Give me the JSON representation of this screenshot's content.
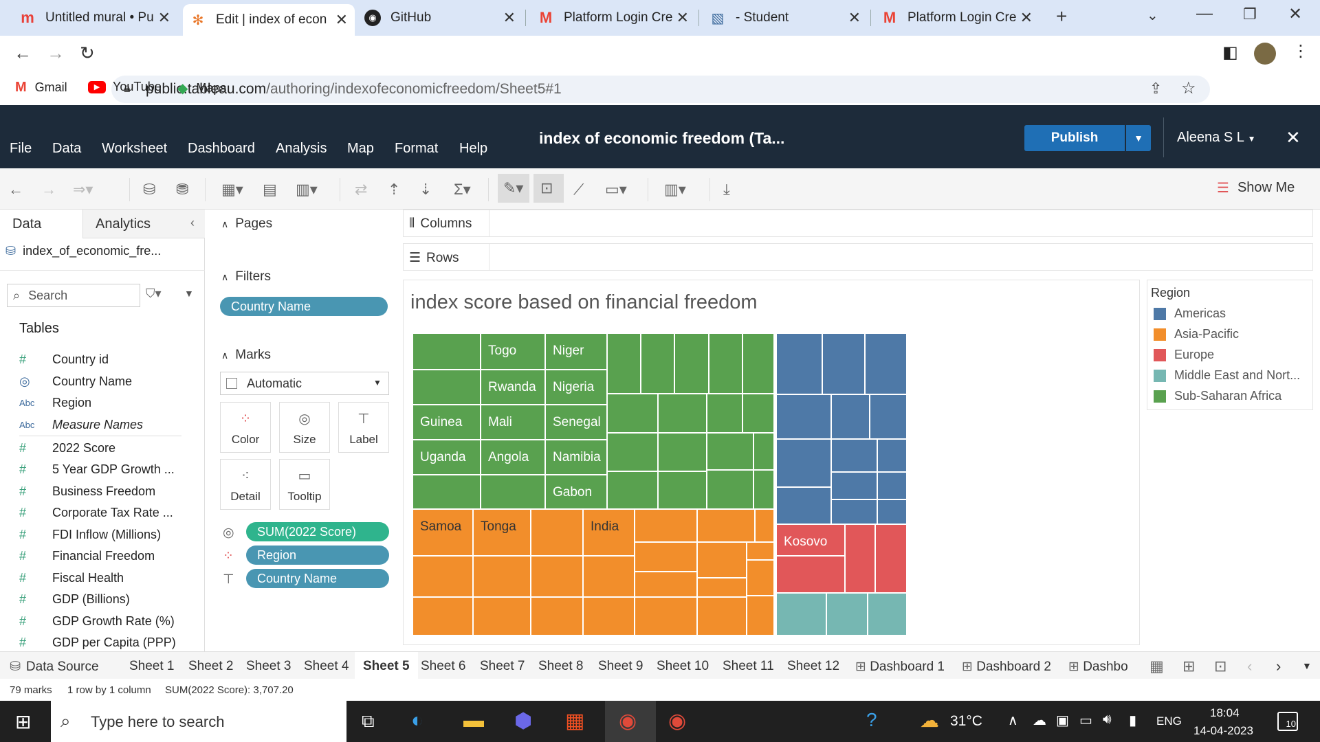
{
  "browser": {
    "tabs": [
      {
        "label": "Untitled mural • Pu",
        "icon": "mural-icon",
        "color": "#e8413a"
      },
      {
        "label": "Edit | index of econ",
        "icon": "tableau-icon",
        "color": "#e97627"
      },
      {
        "label": "GitHub",
        "icon": "github-icon",
        "color": "#222222"
      },
      {
        "label": "Platform Login Cre",
        "icon": "gmail-icon",
        "color": "#ea4335"
      },
      {
        "label": "- Student",
        "icon": "student-icon",
        "color": "#3c6a9c"
      },
      {
        "label": "Platform Login Cre",
        "icon": "gmail-icon",
        "color": "#ea4335"
      }
    ],
    "url_host": "public.tableau.com",
    "url_path": "/authoring/indexofeconomicfreedom/Sheet5#1",
    "bookmarks": [
      "Gmail",
      "YouTube",
      "Maps"
    ]
  },
  "app": {
    "menu": [
      "File",
      "Data",
      "Worksheet",
      "Dashboard",
      "Analysis",
      "Map",
      "Format",
      "Help"
    ],
    "title": "index of economic freedom (Ta...",
    "publish": "Publish",
    "user": "Aleena S L",
    "show_me": "Show Me"
  },
  "datapane": {
    "tab_data": "Data",
    "tab_analytics": "Analytics",
    "datasource": "index_of_economic_fre...",
    "search_placeholder": "Search",
    "tables_label": "Tables",
    "fields": [
      {
        "type": "#",
        "name": "Country id"
      },
      {
        "type": "globe",
        "name": "Country Name"
      },
      {
        "type": "Abc",
        "name": "Region"
      },
      {
        "type": "Abc",
        "name": "Measure Names"
      },
      {
        "type": "#",
        "name": "2022 Score"
      },
      {
        "type": "#",
        "name": "5 Year GDP Growth ..."
      },
      {
        "type": "#",
        "name": "Business Freedom"
      },
      {
        "type": "#",
        "name": "Corporate Tax Rate ..."
      },
      {
        "type": "#",
        "name": "FDI Inflow (Millions)"
      },
      {
        "type": "#",
        "name": "Financial Freedom"
      },
      {
        "type": "#",
        "name": "Fiscal Health"
      },
      {
        "type": "#",
        "name": "GDP (Billions)"
      },
      {
        "type": "#",
        "name": "GDP Growth Rate (%)"
      },
      {
        "type": "#",
        "name": "GDP per Capita (PPP)"
      }
    ]
  },
  "shelves": {
    "pages": "Pages",
    "filters": "Filters",
    "filter_pill": "Country Name",
    "marks": "Marks",
    "mark_type": "Automatic",
    "mark_buttons": [
      "Color",
      "Size",
      "Label",
      "Detail",
      "Tooltip"
    ],
    "mark_pills": [
      "SUM(2022 Score)",
      "Region",
      "Country Name"
    ],
    "columns": "Columns",
    "rows": "Rows"
  },
  "viz": {
    "title": "index score based on financial freedom",
    "labels": [
      "Togo",
      "Niger",
      "Rwanda",
      "Nigeria",
      "Senegal",
      "Mali",
      "Guinea",
      "Namibia",
      "Gabon",
      "Uganda",
      "Angola",
      "Samoa",
      "Tonga",
      "India",
      "Kosovo"
    ]
  },
  "legend": {
    "title": "Region",
    "items": [
      {
        "name": "Americas",
        "color": "#4e79a7"
      },
      {
        "name": "Asia-Pacific",
        "color": "#f28e2b"
      },
      {
        "name": "Europe",
        "color": "#e15759"
      },
      {
        "name": "Middle East and Nort...",
        "color": "#76b7b2"
      },
      {
        "name": "Sub-Saharan Africa",
        "color": "#59a14f"
      }
    ]
  },
  "sheets": {
    "data_source": "Data Source",
    "tabs": [
      "Sheet 1",
      "Sheet 2",
      "Sheet 3",
      "Sheet 4",
      "Sheet 5",
      "Sheet 6",
      "Sheet 7",
      "Sheet 8",
      "Sheet 9",
      "Sheet 10",
      "Sheet 11",
      "Sheet 12",
      "Dashboard 1",
      "Dashboard 2",
      "Dashbo"
    ]
  },
  "status": {
    "marks": "79 marks",
    "rows": "1 row by 1 column",
    "sum": "SUM(2022 Score): 3,707.20"
  },
  "taskbar": {
    "search_placeholder": "Type here to search",
    "weather": "31°C",
    "lang": "ENG",
    "time": "18:04",
    "date": "14-04-2023",
    "notifications": "10"
  }
}
